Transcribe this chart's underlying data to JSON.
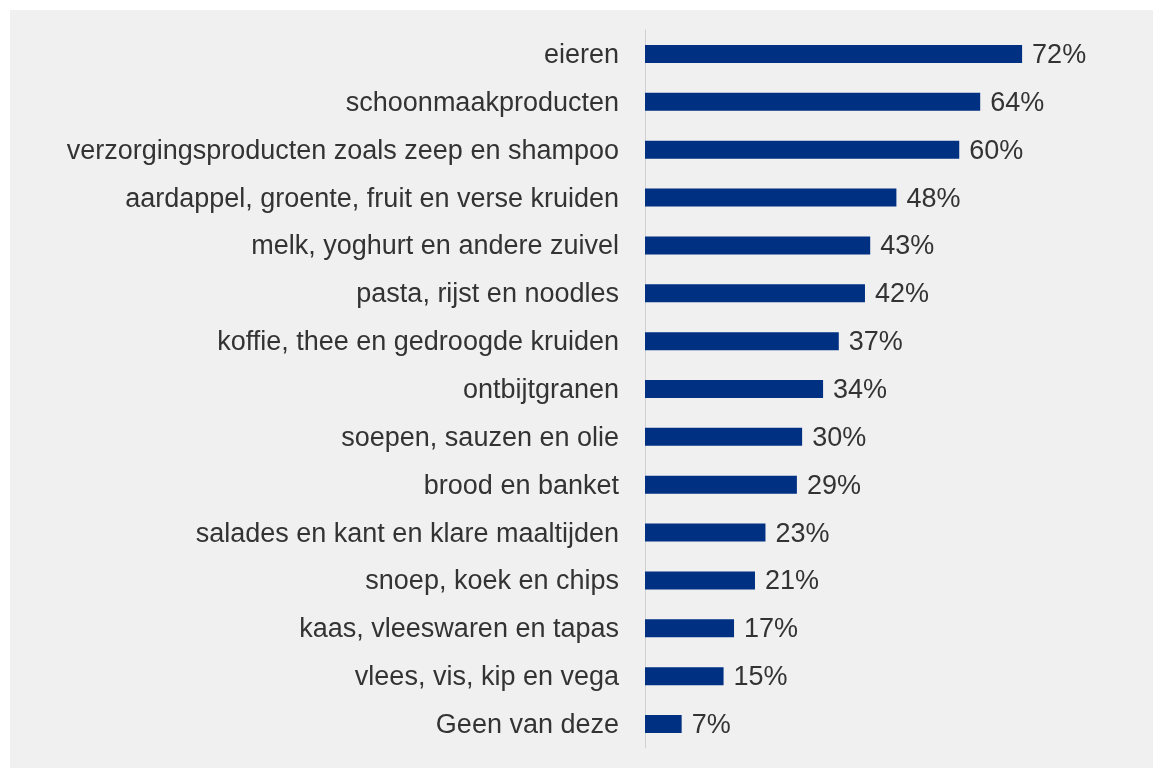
{
  "chart_data": {
    "type": "bar",
    "orientation": "horizontal",
    "categories": [
      "eieren",
      "schoonmaakproducten",
      "verzorgingsproducten zoals zeep en shampoo",
      "aardappel, groente, fruit en verse kruiden",
      "melk, yoghurt en andere zuivel",
      "pasta, rijst en noodles",
      "koffie, thee en gedroogde kruiden",
      "ontbijtgranen",
      "soepen, sauzen en olie",
      "brood en banket",
      "salades en kant en klare maaltijden",
      "snoep, koek en chips",
      "kaas, vleeswaren en tapas",
      "vlees, vis, kip en vega",
      "Geen van deze"
    ],
    "values": [
      72,
      64,
      60,
      48,
      43,
      42,
      37,
      34,
      30,
      29,
      23,
      21,
      17,
      15,
      7
    ],
    "value_labels": [
      "72%",
      "64%",
      "60%",
      "48%",
      "43%",
      "42%",
      "37%",
      "34%",
      "30%",
      "29%",
      "23%",
      "21%",
      "17%",
      "15%",
      "7%"
    ],
    "color": "#003082"
  }
}
